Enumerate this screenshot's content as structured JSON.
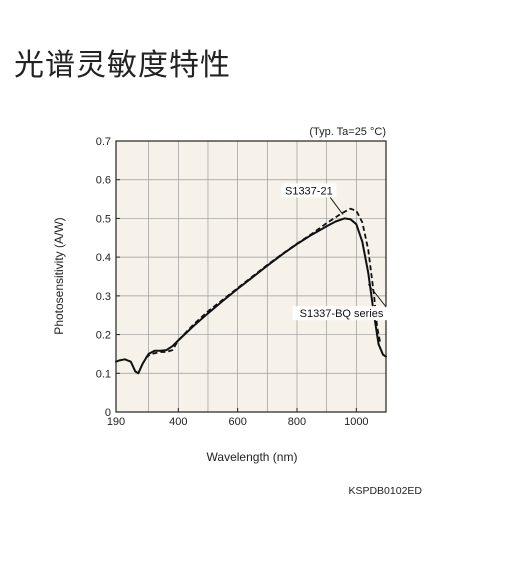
{
  "page": {
    "title": "光谱灵敏度特性"
  },
  "chart_data": {
    "type": "line",
    "condition_note": "(Typ. Ta=25 °C)",
    "xlabel": "Wavelength (nm)",
    "ylabel": "Photosensitivity (A/W)",
    "xlim": [
      190,
      1100
    ],
    "ylim": [
      0,
      0.7
    ],
    "x_ticks": [
      190,
      400,
      600,
      800,
      1000
    ],
    "y_ticks": [
      0,
      0.1,
      0.2,
      0.3,
      0.4,
      0.5,
      0.6,
      0.7
    ],
    "x_tick_labels": [
      "190",
      "400",
      "600",
      "800",
      "1000"
    ],
    "y_tick_labels": [
      "0",
      "0.1",
      "0.2",
      "0.3",
      "0.4",
      "0.5",
      "0.6",
      "0.7"
    ],
    "x_grid": [
      190,
      300,
      400,
      500,
      600,
      700,
      800,
      900,
      1000,
      1100
    ],
    "y_grid": [
      0.1,
      0.2,
      0.3,
      0.4,
      0.5,
      0.6,
      0.7
    ],
    "grid": true,
    "figure_code": "KSPDB0102ED",
    "series": [
      {
        "name": "S1337-BQ series",
        "style": "solid",
        "label_at": [
          1040,
          0.33
        ],
        "label_text_at": [
          950,
          0.245
        ],
        "points": [
          [
            190,
            0.13
          ],
          [
            200,
            0.133
          ],
          [
            220,
            0.136
          ],
          [
            240,
            0.13
          ],
          [
            255,
            0.105
          ],
          [
            265,
            0.1
          ],
          [
            280,
            0.125
          ],
          [
            300,
            0.15
          ],
          [
            320,
            0.158
          ],
          [
            340,
            0.158
          ],
          [
            360,
            0.16
          ],
          [
            380,
            0.17
          ],
          [
            400,
            0.185
          ],
          [
            450,
            0.221
          ],
          [
            500,
            0.255
          ],
          [
            550,
            0.287
          ],
          [
            600,
            0.318
          ],
          [
            650,
            0.348
          ],
          [
            700,
            0.378
          ],
          [
            750,
            0.407
          ],
          [
            800,
            0.434
          ],
          [
            850,
            0.458
          ],
          [
            900,
            0.48
          ],
          [
            930,
            0.492
          ],
          [
            960,
            0.5
          ],
          [
            980,
            0.498
          ],
          [
            1000,
            0.485
          ],
          [
            1020,
            0.44
          ],
          [
            1040,
            0.36
          ],
          [
            1060,
            0.25
          ],
          [
            1075,
            0.175
          ],
          [
            1090,
            0.148
          ],
          [
            1100,
            0.143
          ]
        ]
      },
      {
        "name": "S1337-21",
        "style": "dashed",
        "label_at": [
          955,
          0.51
        ],
        "label_text_at": [
          840,
          0.562
        ],
        "points": [
          [
            290,
            0.14
          ],
          [
            300,
            0.146
          ],
          [
            320,
            0.152
          ],
          [
            340,
            0.155
          ],
          [
            360,
            0.155
          ],
          [
            380,
            0.16
          ],
          [
            400,
            0.185
          ],
          [
            450,
            0.225
          ],
          [
            500,
            0.26
          ],
          [
            550,
            0.29
          ],
          [
            600,
            0.32
          ],
          [
            650,
            0.35
          ],
          [
            700,
            0.38
          ],
          [
            750,
            0.408
          ],
          [
            800,
            0.435
          ],
          [
            850,
            0.46
          ],
          [
            900,
            0.488
          ],
          [
            950,
            0.513
          ],
          [
            980,
            0.525
          ],
          [
            1000,
            0.52
          ],
          [
            1020,
            0.49
          ],
          [
            1040,
            0.42
          ],
          [
            1060,
            0.3
          ],
          [
            1070,
            0.22
          ],
          [
            1080,
            0.18
          ]
        ]
      }
    ]
  }
}
